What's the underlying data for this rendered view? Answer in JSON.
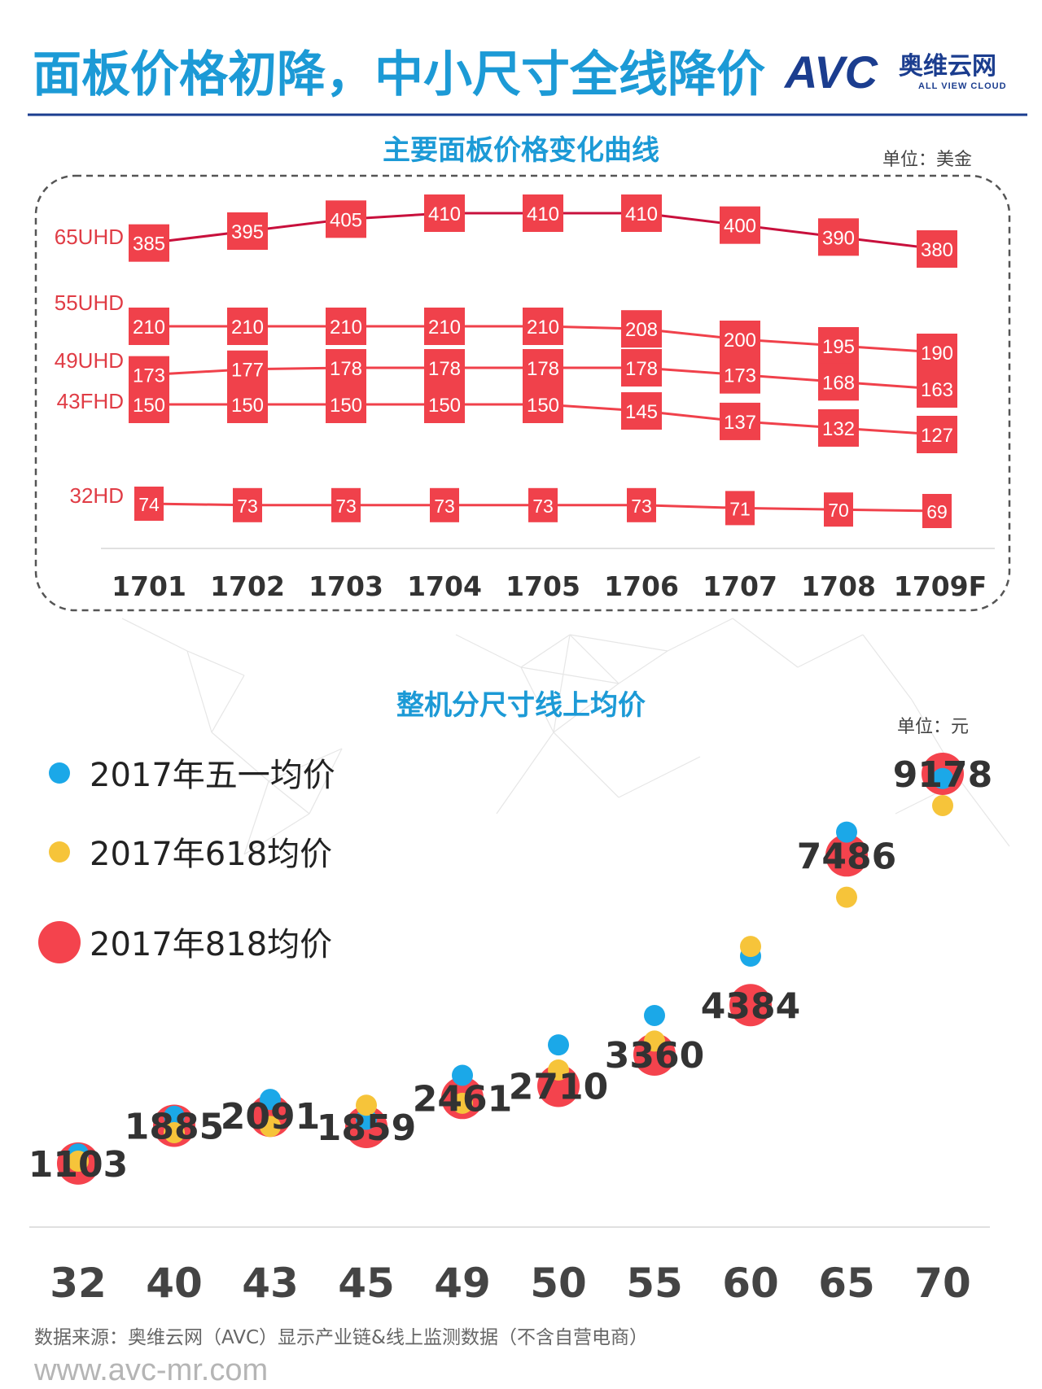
{
  "header": {
    "title": "面板价格初降，中小尺寸全线降价",
    "logo_text": "AVC",
    "logo_cn": "奥维云网",
    "logo_en": "ALL VIEW CLOUD"
  },
  "colors": {
    "accent": "#1c9ad6",
    "panel_red": "#f0414b",
    "line_dark_red": "#c8103c",
    "dot_blue": "#1ba8e8",
    "dot_yellow": "#f6c43a",
    "dot_red": "#f4434d"
  },
  "footer": {
    "source": "数据来源：奥维云网（AVC）显示产业链&线上监测数据（不含自营电商）",
    "url": "www.avc-mr.com"
  },
  "chart_data": [
    {
      "type": "line",
      "title": "主要面板价格变化曲线",
      "unit": "单位：美金",
      "categories": [
        "1701",
        "1702",
        "1703",
        "1704",
        "1705",
        "1706",
        "1707",
        "1708",
        "1709F"
      ],
      "series": [
        {
          "name": "65UHD",
          "values": [
            385,
            395,
            405,
            410,
            410,
            410,
            400,
            390,
            380
          ]
        },
        {
          "name": "55UHD",
          "values": [
            210,
            210,
            210,
            210,
            210,
            208,
            200,
            195,
            190
          ]
        },
        {
          "name": "49UHD",
          "values": [
            173,
            177,
            178,
            178,
            178,
            178,
            173,
            168,
            163
          ]
        },
        {
          "name": "43FHD",
          "values": [
            150,
            150,
            150,
            150,
            150,
            145,
            137,
            132,
            127
          ]
        },
        {
          "name": "32HD",
          "values": [
            74,
            73,
            73,
            73,
            73,
            73,
            71,
            70,
            69
          ]
        }
      ]
    },
    {
      "type": "scatter",
      "title": "整机分尺寸线上均价",
      "unit": "单位：元",
      "categories": [
        "32",
        "40",
        "43",
        "45",
        "49",
        "50",
        "55",
        "60",
        "65",
        "70"
      ],
      "series": [
        {
          "name": "2017年五一均价",
          "values": [
            1300,
            2080,
            2430,
            2020,
            2930,
            3560,
            4170,
            5400,
            7970,
            9080
          ]
        },
        {
          "name": "2017年618均价",
          "values": [
            1150,
            1740,
            1870,
            2310,
            2350,
            3040,
            3640,
            5600,
            6620,
            8520
          ]
        },
        {
          "name": "2017年818均价",
          "values": [
            1103,
            1885,
            2091,
            1859,
            2461,
            2710,
            3360,
            4384,
            7486,
            9178
          ]
        }
      ]
    }
  ]
}
